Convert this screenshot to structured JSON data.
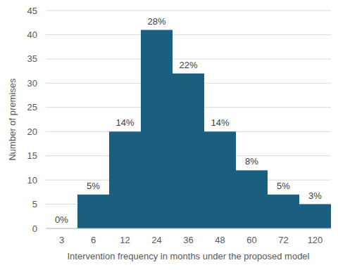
{
  "chart_data": {
    "type": "bar",
    "x_label": "Intervention frequency in months under the proposed model",
    "y_label": "Number of premises",
    "categories": [
      "3",
      "6",
      "12",
      "24",
      "36",
      "48",
      "60",
      "72",
      "120"
    ],
    "values": [
      0,
      7,
      20,
      41,
      32,
      20,
      12,
      7,
      5
    ],
    "percent_labels": [
      "0%",
      "5%",
      "14%",
      "28%",
      "22%",
      "14%",
      "8%",
      "5%",
      "3%"
    ],
    "color": "#1a5e80",
    "ylim": [
      0,
      45
    ],
    "yticks": [
      0,
      5,
      10,
      15,
      20,
      25,
      30,
      35,
      40,
      45
    ],
    "grid": true
  }
}
